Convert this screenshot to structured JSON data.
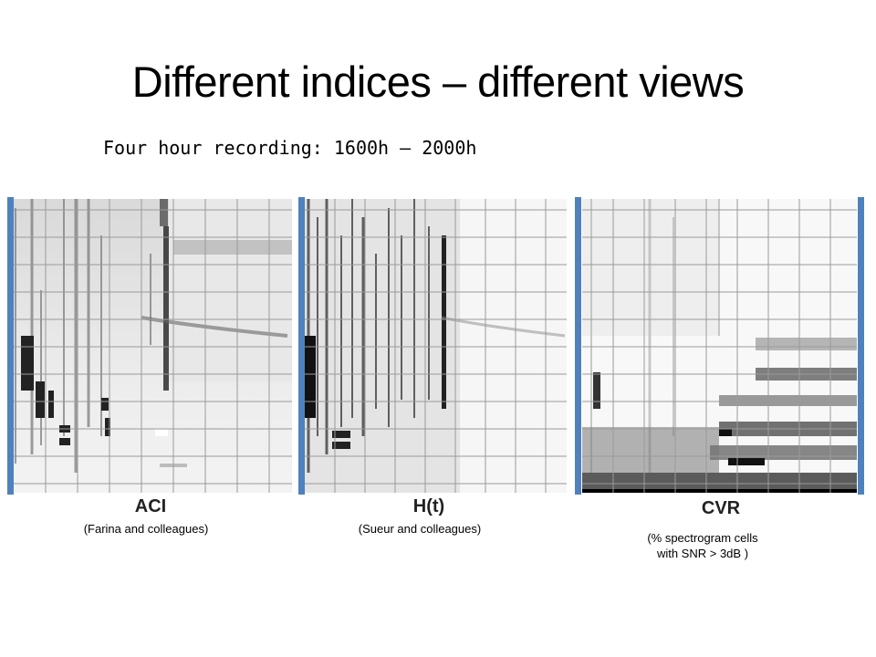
{
  "slide": {
    "title": "Different indices – different views",
    "subtitle": "Four hour recording: 1600h – 2000h"
  },
  "panels": [
    {
      "name": "ACI",
      "credit": "(Farina and colleagues)"
    },
    {
      "name": "H(t)",
      "credit": "(Sueur and colleagues)"
    },
    {
      "name": "CVR",
      "credit": "(% spectrogram cells\nwith SNR > 3dB )"
    }
  ],
  "colors": {
    "accent_bar": "#4f81bd",
    "grid": "#9a9a9a"
  }
}
